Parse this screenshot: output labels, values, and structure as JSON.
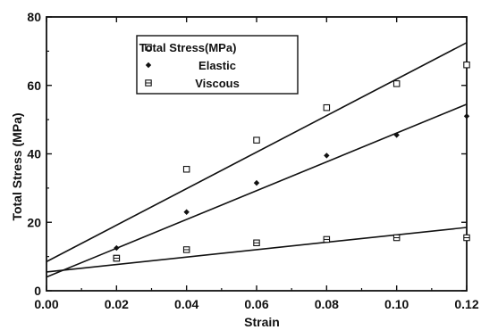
{
  "chart_data": {
    "type": "scatter",
    "xlabel": "Strain",
    "ylabel": "Total Stress (MPa)",
    "xlim": [
      0.0,
      0.12
    ],
    "ylim": [
      0,
      80
    ],
    "xticks": [
      0.0,
      0.02,
      0.04,
      0.06,
      0.08,
      0.1,
      0.12
    ],
    "xtick_labels": [
      "0.00",
      "0.02",
      "0.04",
      "0.06",
      "0.08",
      "0.10",
      "0.12"
    ],
    "yticks": [
      0,
      20,
      40,
      60,
      80
    ],
    "ytick_labels": [
      "0",
      "20",
      "40",
      "60",
      "80"
    ],
    "grid": false,
    "legend_position": "top-left",
    "series": [
      {
        "name": "Total Stress(MPa)",
        "marker": "open-square",
        "x": [
          0.02,
          0.04,
          0.06,
          0.08,
          0.1,
          0.12
        ],
        "y": [
          9.5,
          35.5,
          44,
          53.5,
          60.5,
          66
        ],
        "fit": {
          "x": [
            0.0,
            0.12
          ],
          "y": [
            8.5,
            72.5
          ]
        }
      },
      {
        "name": "Elastic",
        "marker": "filled-diamond",
        "x": [
          0.02,
          0.04,
          0.06,
          0.08,
          0.1,
          0.12
        ],
        "y": [
          12.5,
          23,
          31.5,
          39.5,
          45.5,
          51
        ],
        "fit": {
          "x": [
            0.0,
            0.12
          ],
          "y": [
            4,
            54.5
          ]
        }
      },
      {
        "name": "Viscous",
        "marker": "hatched-square",
        "x": [
          0.02,
          0.04,
          0.06,
          0.08,
          0.1,
          0.12
        ],
        "y": [
          9.5,
          12,
          14,
          15,
          15.5,
          15.5
        ],
        "fit": {
          "x": [
            0.0,
            0.12
          ],
          "y": [
            5.5,
            18.5
          ]
        }
      }
    ]
  }
}
